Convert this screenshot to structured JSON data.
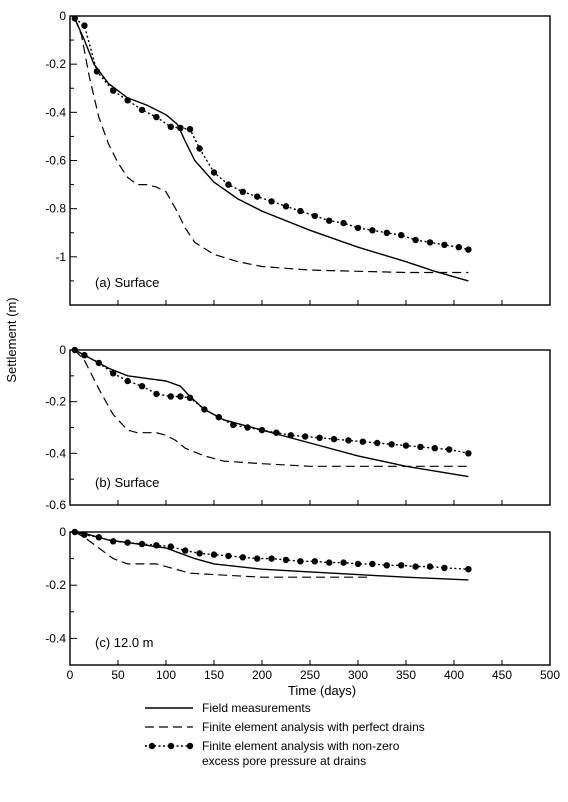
{
  "chart_data": {
    "type": "line",
    "xlabel": "Time (days)",
    "ylabel": "Settlement (m)",
    "x_ticks": [
      "0",
      "50",
      "100",
      "150",
      "200",
      "250",
      "300",
      "350",
      "400",
      "450",
      "500"
    ],
    "xlim": [
      0,
      500
    ],
    "legend_position": "bottom",
    "legend": [
      {
        "key": "field",
        "lines": [
          "Field measurements"
        ]
      },
      {
        "key": "perfect",
        "lines": [
          "Finite element analysis with perfect drains"
        ]
      },
      {
        "key": "nonzero",
        "lines": [
          "Finite element analysis with non-zero",
          "excess pore pressure at drains"
        ]
      }
    ],
    "panels": [
      {
        "label": "(a) Surface",
        "ylim": [
          -1.2,
          0
        ],
        "y_ticks": [
          {
            "value": 0,
            "label": "0"
          },
          {
            "value": -0.2,
            "label": "-0.2"
          },
          {
            "value": -0.4,
            "label": "-0.4"
          },
          {
            "value": -0.6,
            "label": "-0.6"
          },
          {
            "value": -0.8,
            "label": "-0.8"
          },
          {
            "value": -1.0,
            "label": "-1"
          }
        ],
        "series": [
          {
            "key": "field",
            "x": [
              5,
              15,
              25,
              40,
              60,
              80,
              100,
              112,
              120,
              130,
              150,
              175,
              200,
              250,
              300,
              350,
              380,
              415
            ],
            "y": [
              -0.01,
              -0.1,
              -0.2,
              -0.28,
              -0.34,
              -0.37,
              -0.41,
              -0.45,
              -0.52,
              -0.6,
              -0.69,
              -0.76,
              -0.81,
              -0.89,
              -0.96,
              -1.02,
              -1.06,
              -1.1
            ]
          },
          {
            "key": "perfect",
            "x": [
              5,
              12,
              20,
              30,
              40,
              50,
              60,
              70,
              80,
              90,
              100,
              110,
              120,
              130,
              150,
              175,
              200,
              250,
              300,
              350,
              415
            ],
            "y": [
              -0.01,
              -0.08,
              -0.25,
              -0.42,
              -0.53,
              -0.61,
              -0.67,
              -0.7,
              -0.7,
              -0.71,
              -0.73,
              -0.8,
              -0.88,
              -0.94,
              -0.99,
              -1.02,
              -1.04,
              -1.055,
              -1.06,
              -1.065,
              -1.065
            ]
          },
          {
            "key": "nonzero",
            "x": [
              5,
              15,
              28,
              45,
              60,
              75,
              90,
              105,
              115,
              125,
              135,
              150,
              165,
              180,
              195,
              210,
              225,
              240,
              255,
              270,
              285,
              300,
              315,
              330,
              345,
              360,
              375,
              390,
              405,
              415
            ],
            "y": [
              -0.01,
              -0.04,
              -0.23,
              -0.31,
              -0.35,
              -0.39,
              -0.42,
              -0.46,
              -0.465,
              -0.47,
              -0.55,
              -0.65,
              -0.7,
              -0.73,
              -0.75,
              -0.77,
              -0.79,
              -0.81,
              -0.83,
              -0.85,
              -0.86,
              -0.88,
              -0.89,
              -0.9,
              -0.91,
              -0.93,
              -0.94,
              -0.95,
              -0.96,
              -0.97
            ]
          }
        ]
      },
      {
        "label": "(b) Surface",
        "ylim": [
          -0.6,
          0
        ],
        "y_ticks": [
          {
            "value": 0,
            "label": "0"
          },
          {
            "value": -0.2,
            "label": "-0.2"
          },
          {
            "value": -0.4,
            "label": "-0.4"
          },
          {
            "value": -0.6,
            "label": "-0.6"
          }
        ],
        "series": [
          {
            "key": "field",
            "x": [
              5,
              20,
              40,
              60,
              80,
              100,
              115,
              125,
              140,
              160,
              200,
              250,
              300,
              350,
              415
            ],
            "y": [
              0,
              -0.03,
              -0.07,
              -0.1,
              -0.11,
              -0.12,
              -0.14,
              -0.18,
              -0.23,
              -0.27,
              -0.31,
              -0.36,
              -0.41,
              -0.45,
              -0.49
            ]
          },
          {
            "key": "perfect",
            "x": [
              5,
              15,
              30,
              45,
              60,
              70,
              80,
              90,
              100,
              110,
              120,
              140,
              160,
              200,
              250,
              300,
              350,
              415
            ],
            "y": [
              0,
              -0.04,
              -0.15,
              -0.25,
              -0.31,
              -0.32,
              -0.32,
              -0.32,
              -0.33,
              -0.35,
              -0.38,
              -0.41,
              -0.43,
              -0.44,
              -0.45,
              -0.45,
              -0.45,
              -0.45
            ]
          },
          {
            "key": "nonzero",
            "x": [
              5,
              15,
              30,
              45,
              60,
              75,
              90,
              105,
              115,
              125,
              140,
              155,
              170,
              185,
              200,
              215,
              230,
              245,
              260,
              275,
              290,
              305,
              320,
              335,
              350,
              365,
              380,
              395,
              415
            ],
            "y": [
              0,
              -0.02,
              -0.05,
              -0.09,
              -0.12,
              -0.14,
              -0.17,
              -0.18,
              -0.18,
              -0.185,
              -0.23,
              -0.26,
              -0.29,
              -0.3,
              -0.31,
              -0.32,
              -0.33,
              -0.335,
              -0.34,
              -0.345,
              -0.35,
              -0.355,
              -0.36,
              -0.365,
              -0.37,
              -0.375,
              -0.38,
              -0.385,
              -0.4
            ]
          }
        ]
      },
      {
        "label": "(c) 12.0 m",
        "ylim": [
          -0.5,
          0
        ],
        "y_ticks": [
          {
            "value": 0,
            "label": "0"
          },
          {
            "value": -0.2,
            "label": "-0.2"
          },
          {
            "value": -0.4,
            "label": "-0.4"
          }
        ],
        "series": [
          {
            "key": "field",
            "x": [
              5,
              20,
              40,
              60,
              80,
              100,
              115,
              130,
              150,
              200,
              250,
              300,
              350,
              415
            ],
            "y": [
              0,
              -0.01,
              -0.03,
              -0.04,
              -0.05,
              -0.06,
              -0.08,
              -0.1,
              -0.12,
              -0.14,
              -0.15,
              -0.16,
              -0.17,
              -0.18
            ]
          },
          {
            "key": "perfect",
            "x": [
              5,
              15,
              30,
              45,
              60,
              75,
              90,
              100,
              110,
              125,
              150,
              200,
              250,
              310
            ],
            "y": [
              0,
              -0.02,
              -0.06,
              -0.1,
              -0.12,
              -0.12,
              -0.12,
              -0.13,
              -0.14,
              -0.155,
              -0.16,
              -0.17,
              -0.17,
              -0.17
            ]
          },
          {
            "key": "nonzero",
            "x": [
              5,
              15,
              30,
              45,
              60,
              75,
              90,
              105,
              120,
              135,
              150,
              165,
              180,
              195,
              210,
              225,
              240,
              255,
              270,
              285,
              300,
              315,
              330,
              345,
              360,
              375,
              390,
              415
            ],
            "y": [
              0,
              -0.01,
              -0.02,
              -0.035,
              -0.04,
              -0.045,
              -0.05,
              -0.055,
              -0.07,
              -0.08,
              -0.085,
              -0.09,
              -0.095,
              -0.1,
              -0.1,
              -0.105,
              -0.11,
              -0.11,
              -0.115,
              -0.115,
              -0.12,
              -0.12,
              -0.125,
              -0.125,
              -0.13,
              -0.13,
              -0.135,
              -0.14
            ]
          }
        ]
      }
    ]
  }
}
